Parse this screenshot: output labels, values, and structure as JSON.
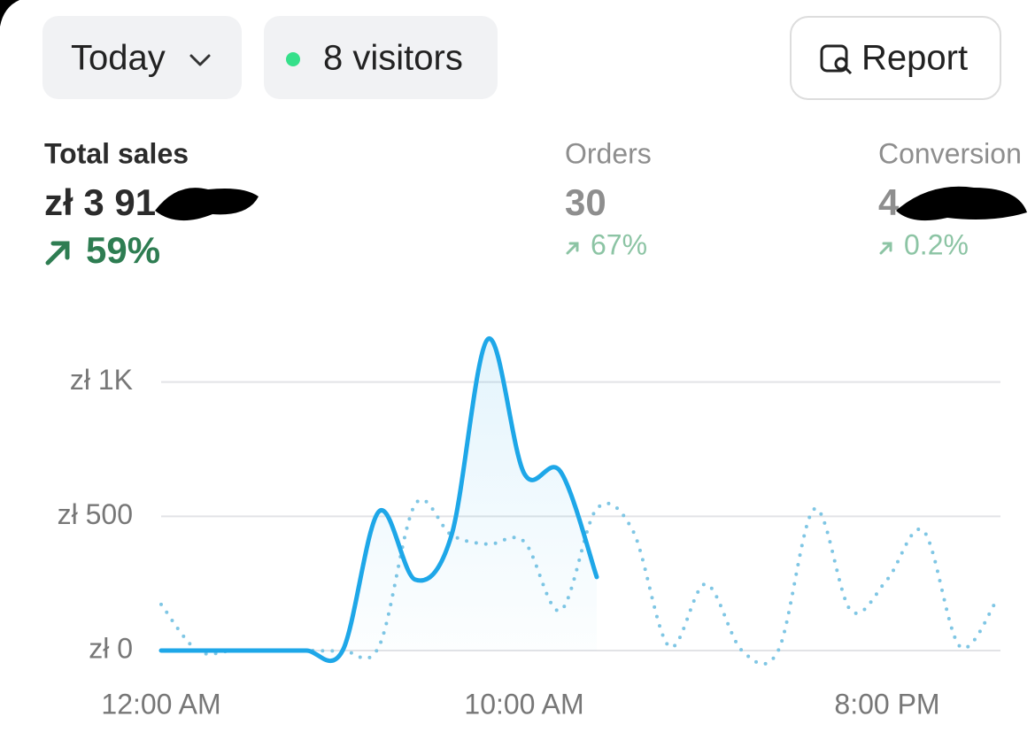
{
  "toolbar": {
    "period": "Today",
    "visitors": "8 visitors",
    "report": "Report"
  },
  "metrics": [
    {
      "label": "Total sales",
      "value": "zł 3 91",
      "change": "59%"
    },
    {
      "label": "Orders",
      "value": "30",
      "change": "67%"
    },
    {
      "label": "Conversion",
      "value": "4",
      "change": "0.2%"
    }
  ],
  "chart_data": {
    "type": "line",
    "x": [
      0,
      1,
      2,
      3,
      4,
      5,
      6,
      7,
      8,
      9,
      10,
      11,
      12,
      13,
      14,
      15,
      16,
      17,
      18,
      19,
      20,
      21,
      22,
      23
    ],
    "xlim": [
      0,
      23
    ],
    "xticks": [
      {
        "value": 0,
        "label": "12:00 AM"
      },
      {
        "value": 10,
        "label": "10:00 AM"
      },
      {
        "value": 20,
        "label": "8:00 PM"
      }
    ],
    "ylim": [
      0,
      1200
    ],
    "yticks": [
      {
        "value": 0,
        "label": "zł 0"
      },
      {
        "value": 500,
        "label": "zł 500"
      },
      {
        "value": 1000,
        "label": "zł 1K"
      }
    ],
    "grid": true,
    "series": [
      {
        "color": "#1ea7e8",
        "style": "solid",
        "area": true,
        "values": [
          0,
          0,
          0,
          0,
          0,
          0,
          518,
          264,
          430,
          1160,
          660,
          667,
          274,
          null,
          null,
          null,
          null,
          null,
          null,
          null,
          null,
          null,
          null,
          null
        ]
      },
      {
        "color": "#7fc6e4",
        "style": "dotted",
        "values": [
          172,
          0,
          0,
          0,
          0,
          0,
          15,
          545,
          430,
          396,
          406,
          149,
          528,
          445,
          15,
          248,
          0,
          0,
          528,
          149,
          264,
          446,
          16,
          182
        ]
      }
    ]
  }
}
